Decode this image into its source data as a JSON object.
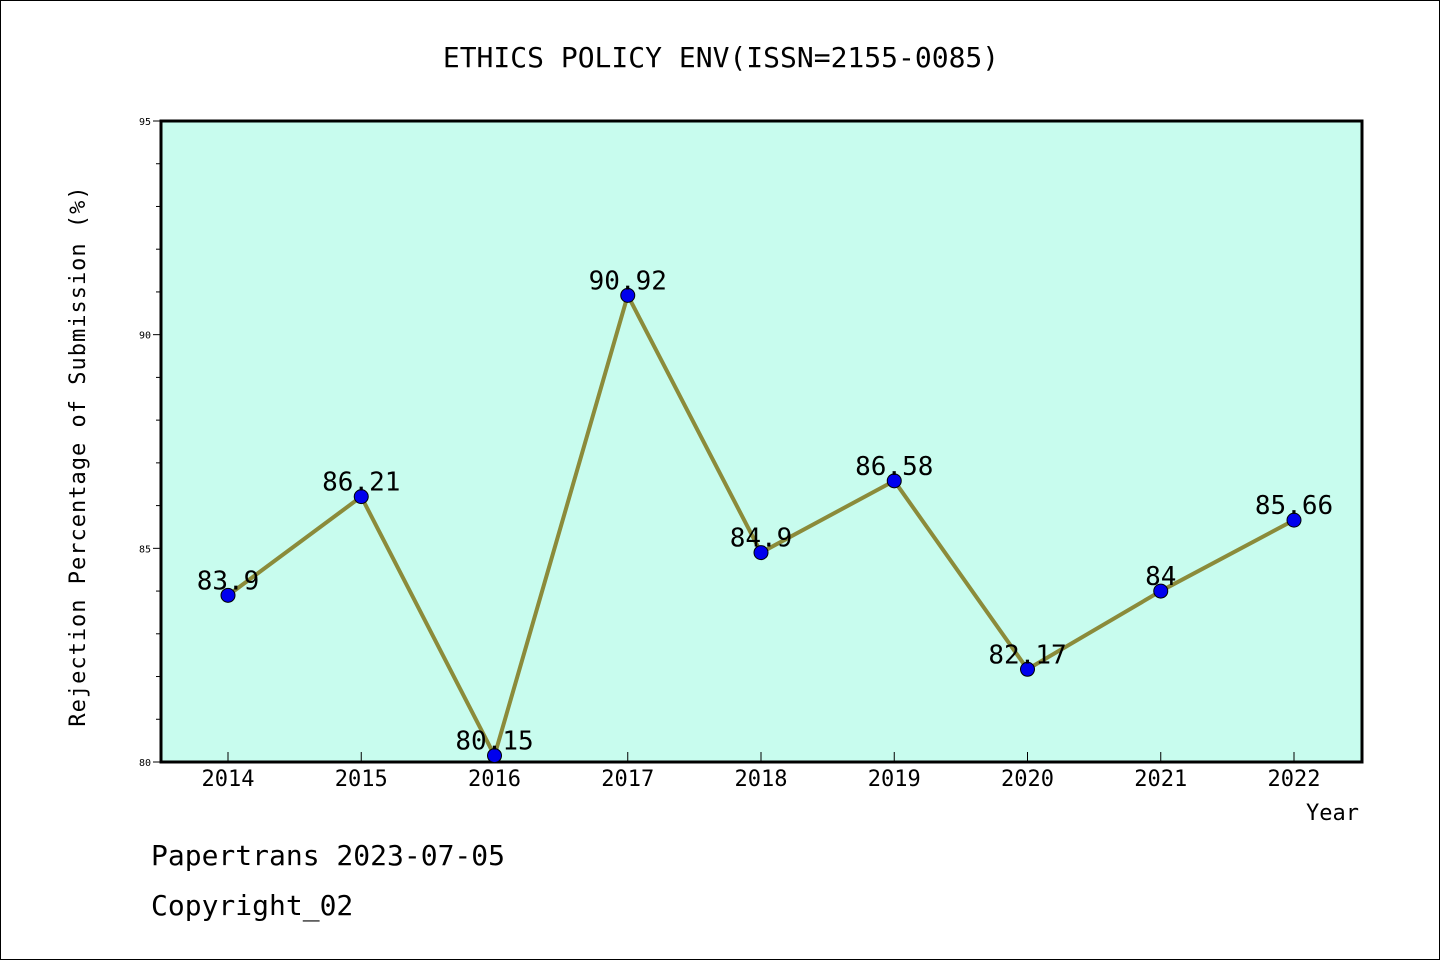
{
  "chart_data": {
    "type": "line",
    "title": "ETHICS POLICY ENV(ISSN=2155-0085)",
    "xlabel": "Year",
    "ylabel": "Rejection Percentage of Submission (%)",
    "categories": [
      "2014",
      "2015",
      "2016",
      "2017",
      "2018",
      "2019",
      "2020",
      "2021",
      "2022"
    ],
    "values": [
      83.9,
      86.21,
      80.15,
      90.92,
      84.9,
      86.58,
      82.17,
      84,
      85.66
    ],
    "data_labels": [
      "83.9",
      "86.21",
      "80.15",
      "90.92",
      "84.9",
      "86.58",
      "82.17",
      "84",
      "85.66"
    ],
    "ylim": [
      80,
      95
    ],
    "yticks": [
      "80",
      "85",
      "90",
      "95"
    ],
    "grid": false,
    "colors": {
      "plot_background": "#c8fcee",
      "line": "#8b8b3a",
      "marker": "#0000ee"
    }
  },
  "footer": {
    "line1": "Papertrans 2023-07-05",
    "line2": "Copyright_02"
  }
}
